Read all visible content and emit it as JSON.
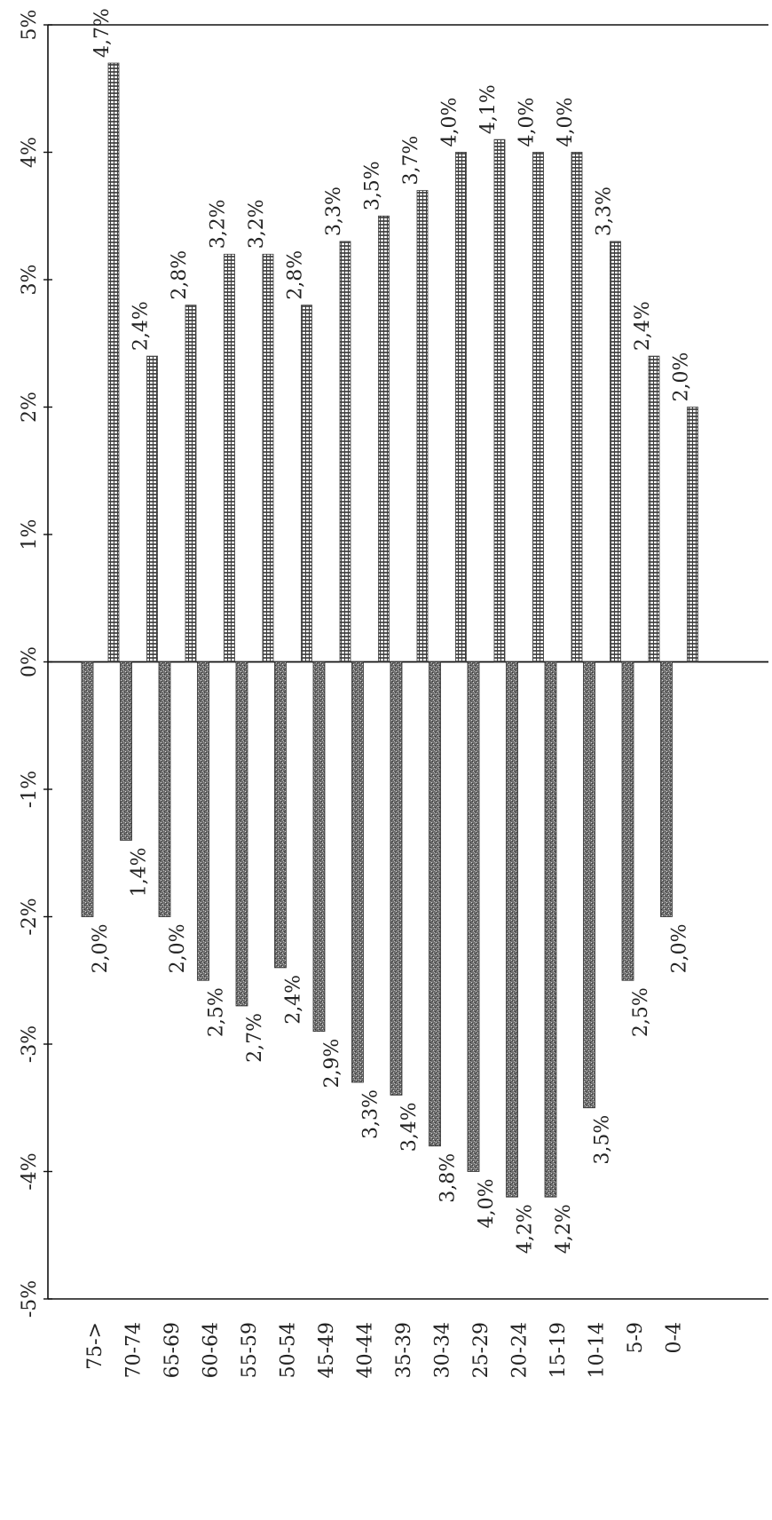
{
  "chart_data": {
    "type": "bar",
    "orientation": "horizontal-bars-rotated",
    "categories": [
      "75->",
      "70-74",
      "65-69",
      "60-64",
      "55-59",
      "50-54",
      "45-49",
      "40-44",
      "35-39",
      "30-34",
      "25-29",
      "20-24",
      "15-19",
      "10-14",
      "5-9",
      "0-4"
    ],
    "series": [
      {
        "values": [
          4.7,
          2.4,
          2.8,
          3.2,
          3.2,
          2.8,
          3.3,
          3.5,
          3.7,
          4.0,
          4.1,
          4.0,
          4.0,
          3.3,
          2.4,
          2.0
        ],
        "labels": [
          "4,7%",
          "2,4%",
          "2,8%",
          "3,2%",
          "3,2%",
          "2,8%",
          "3,3%",
          "3,5%",
          "3,7%",
          "4,0%",
          "4,1%",
          "4,0%",
          "4,0%",
          "3,3%",
          "2,4%",
          "2,0%"
        ],
        "color": "#9a9a9a"
      },
      {
        "values": [
          -2.0,
          -1.4,
          -2.0,
          -2.5,
          -2.7,
          -2.4,
          -2.9,
          -3.3,
          -3.4,
          -3.8,
          -4.0,
          -4.2,
          -4.2,
          -3.5,
          -2.5,
          -2.0
        ],
        "labels": [
          "2,0%",
          "1,4%",
          "2,0%",
          "2,5%",
          "2,7%",
          "2,4%",
          "2,9%",
          "3,3%",
          "3,4%",
          "3,8%",
          "4,0%",
          "4,2%",
          "4,2%",
          "3,5%",
          "2,5%",
          "2,0%"
        ],
        "color": "#5a5a5a"
      }
    ],
    "value_axis": {
      "min": -5,
      "max": 5,
      "ticks": [
        -5,
        -4,
        -3,
        -2,
        -1,
        0,
        1,
        2,
        3,
        4,
        5
      ],
      "tick_labels": [
        "-5%",
        "-4%",
        "-3%",
        "-2%",
        "-1%",
        "0%",
        "1%",
        "2%",
        "3%",
        "4%",
        "5%"
      ]
    },
    "grid": false,
    "legend": "none"
  }
}
